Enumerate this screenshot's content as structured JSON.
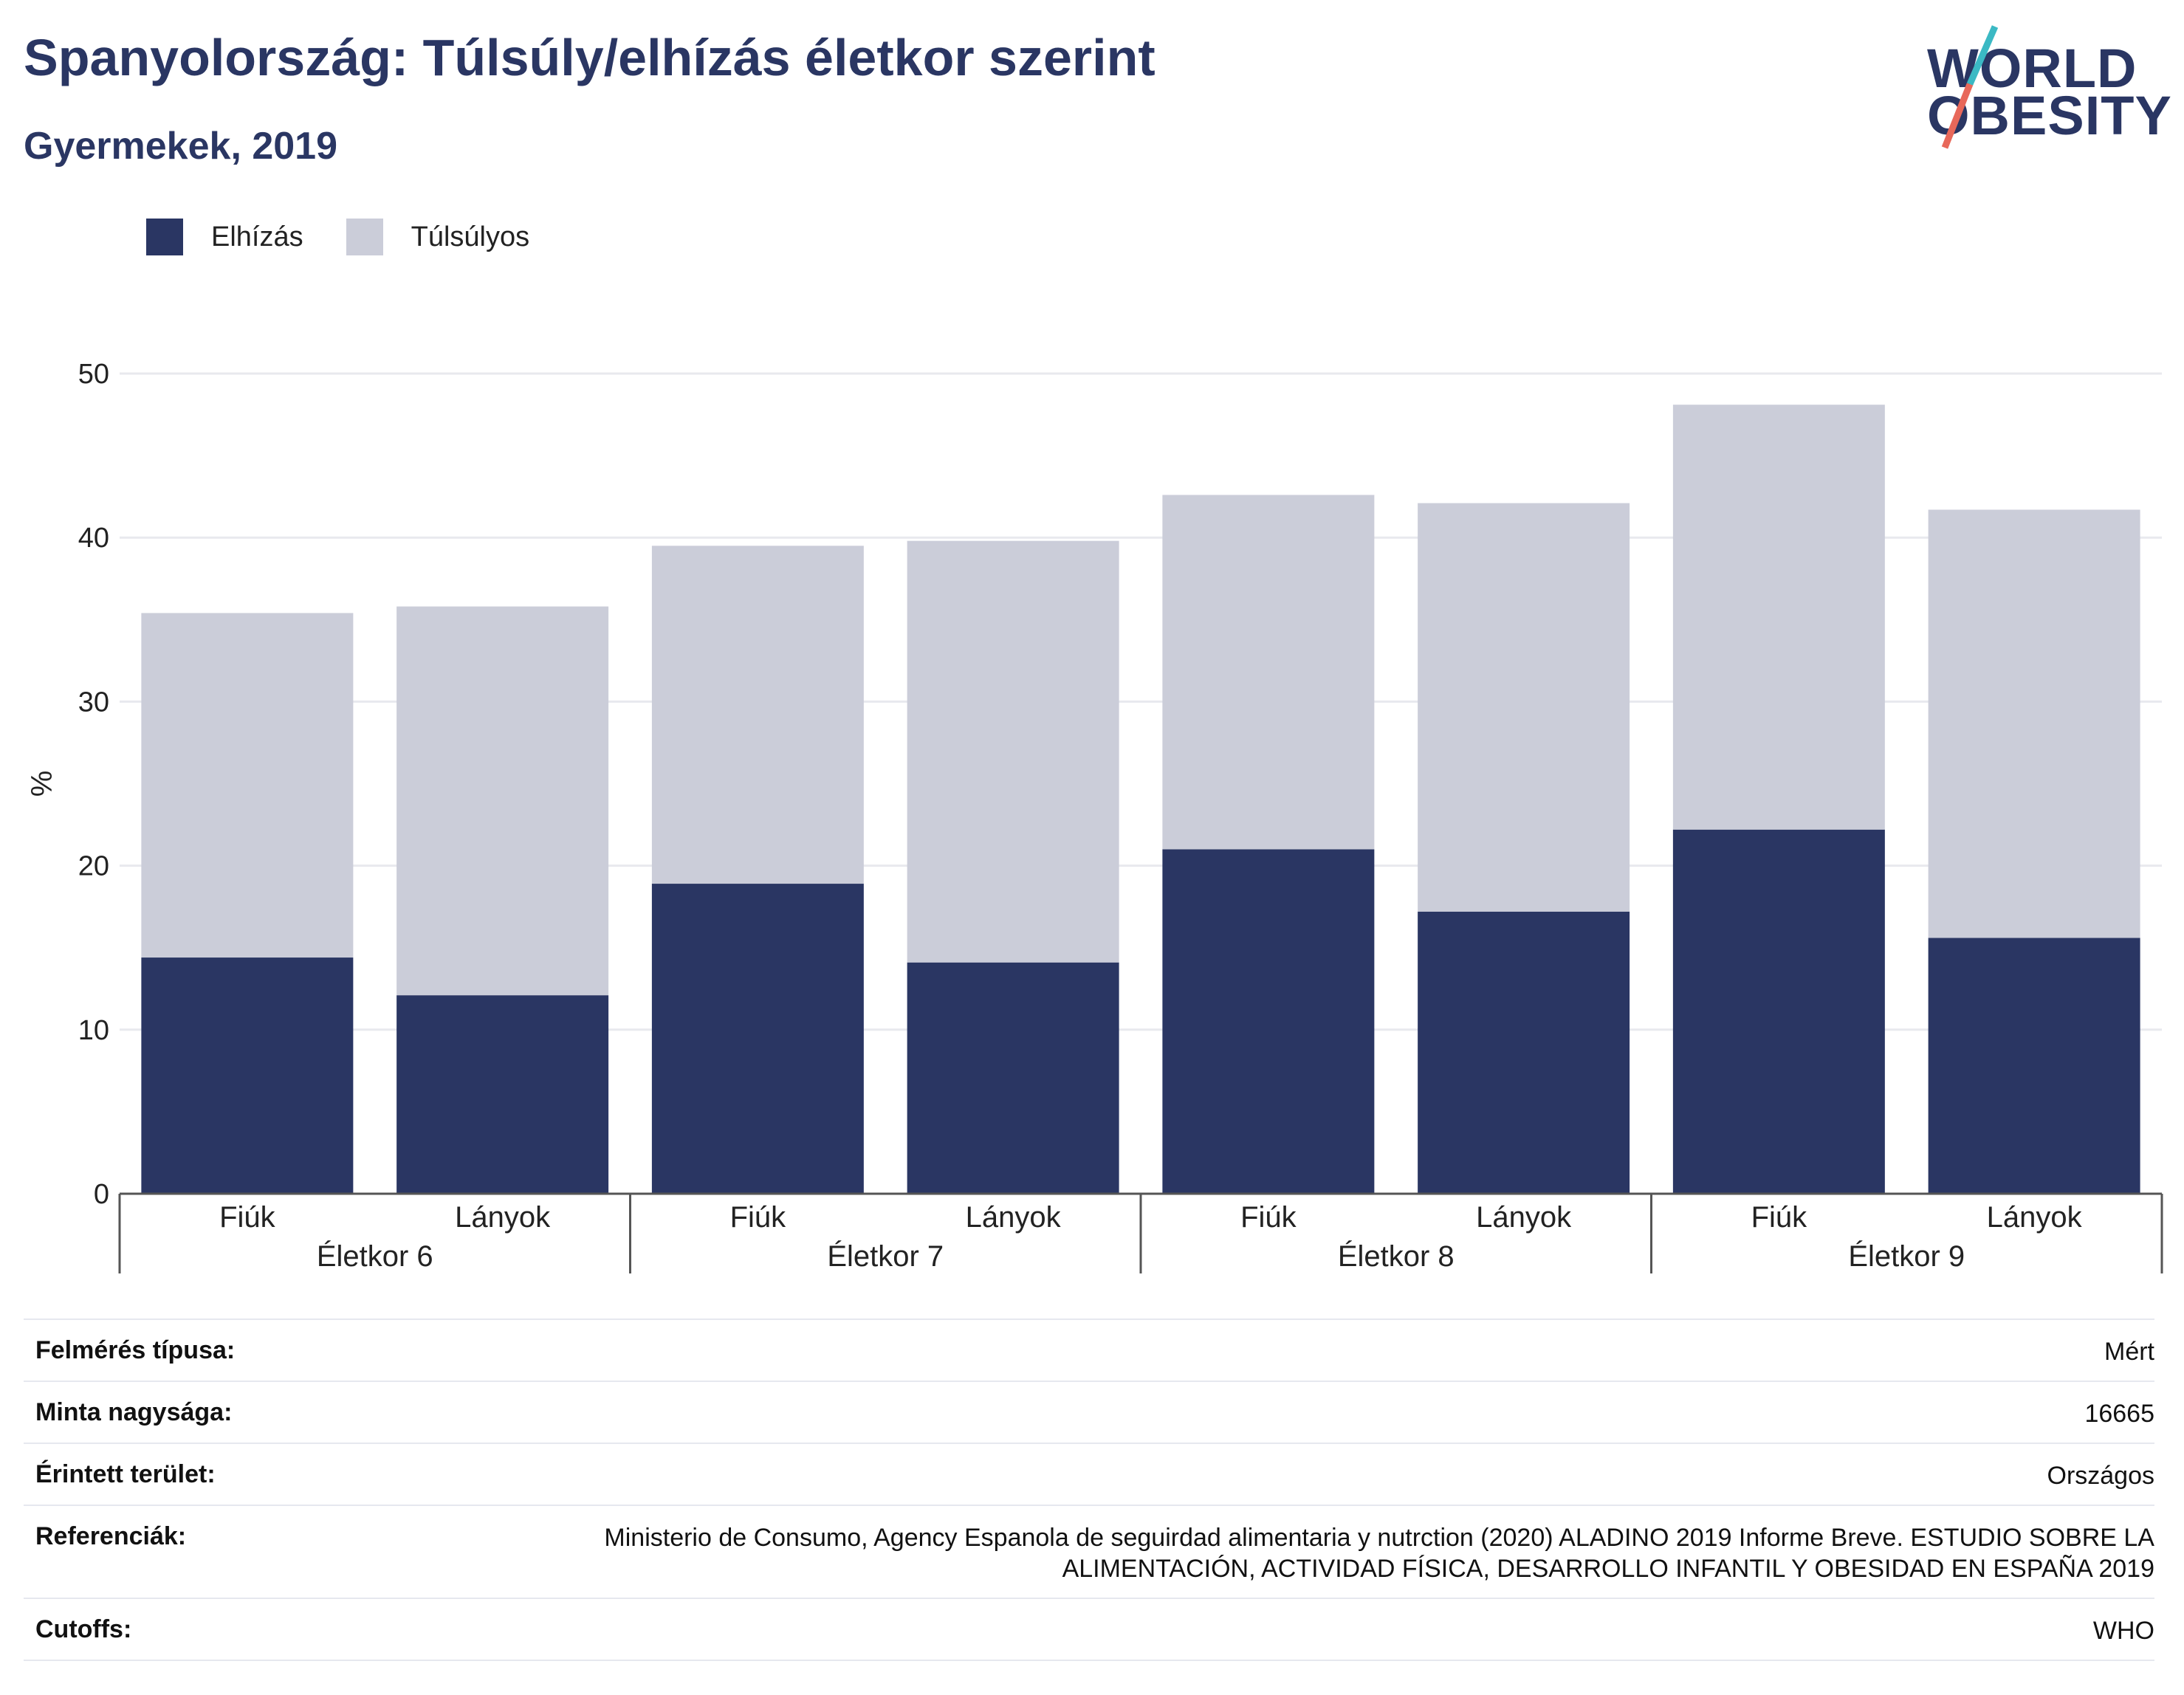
{
  "header": {
    "title": "Spanyolország: Túlsúly/elhízás életkor szerint",
    "subtitle": "Gyermekek, 2019"
  },
  "logo": {
    "line1": "WORLD",
    "line2": "OBESITY",
    "accent_colors": [
      "#3bb9c4",
      "#e8685a"
    ]
  },
  "colors": {
    "obesity": "#2a3663",
    "overweight": "#cbcdd9",
    "grid": "#e8e9ee",
    "axis": "#555555",
    "text": "#222222"
  },
  "chart_data": {
    "type": "bar",
    "stacked": true,
    "ylabel": "%",
    "ylim": [
      0,
      50
    ],
    "yticks": [
      0,
      10,
      20,
      30,
      40,
      50
    ],
    "grid": true,
    "legend_position": "top-left",
    "groups": [
      "Életkor 6",
      "Életkor 7",
      "Életkor 8",
      "Életkor 9"
    ],
    "categories": [
      "Fiúk",
      "Lányok",
      "Fiúk",
      "Lányok",
      "Fiúk",
      "Lányok",
      "Fiúk",
      "Lányok"
    ],
    "series": [
      {
        "name": "Elhízás",
        "values": [
          14.4,
          12.1,
          18.9,
          14.1,
          21.0,
          17.2,
          22.2,
          15.6
        ]
      },
      {
        "name": "Túlsúlyos",
        "values": [
          21.0,
          23.7,
          20.6,
          25.7,
          21.6,
          24.9,
          25.9,
          26.1
        ]
      }
    ]
  },
  "meta": [
    {
      "label": "Felmérés típusa:",
      "value": "Mért"
    },
    {
      "label": "Minta nagysága:",
      "value": "16665"
    },
    {
      "label": "Érintett terület:",
      "value": "Országos"
    },
    {
      "label": "Referenciák:",
      "value": "Ministerio de Consumo, Agency Espanola de seguirdad alimentaria y nutrction (2020) ALADINO 2019 Informe Breve. ESTUDIO SOBRE LA ALIMENTACIÓN, ACTIVIDAD FÍSICA, DESARROLLO INFANTIL Y OBESIDAD EN ESPAÑA 2019"
    },
    {
      "label": "Cutoffs:",
      "value": "WHO"
    }
  ]
}
